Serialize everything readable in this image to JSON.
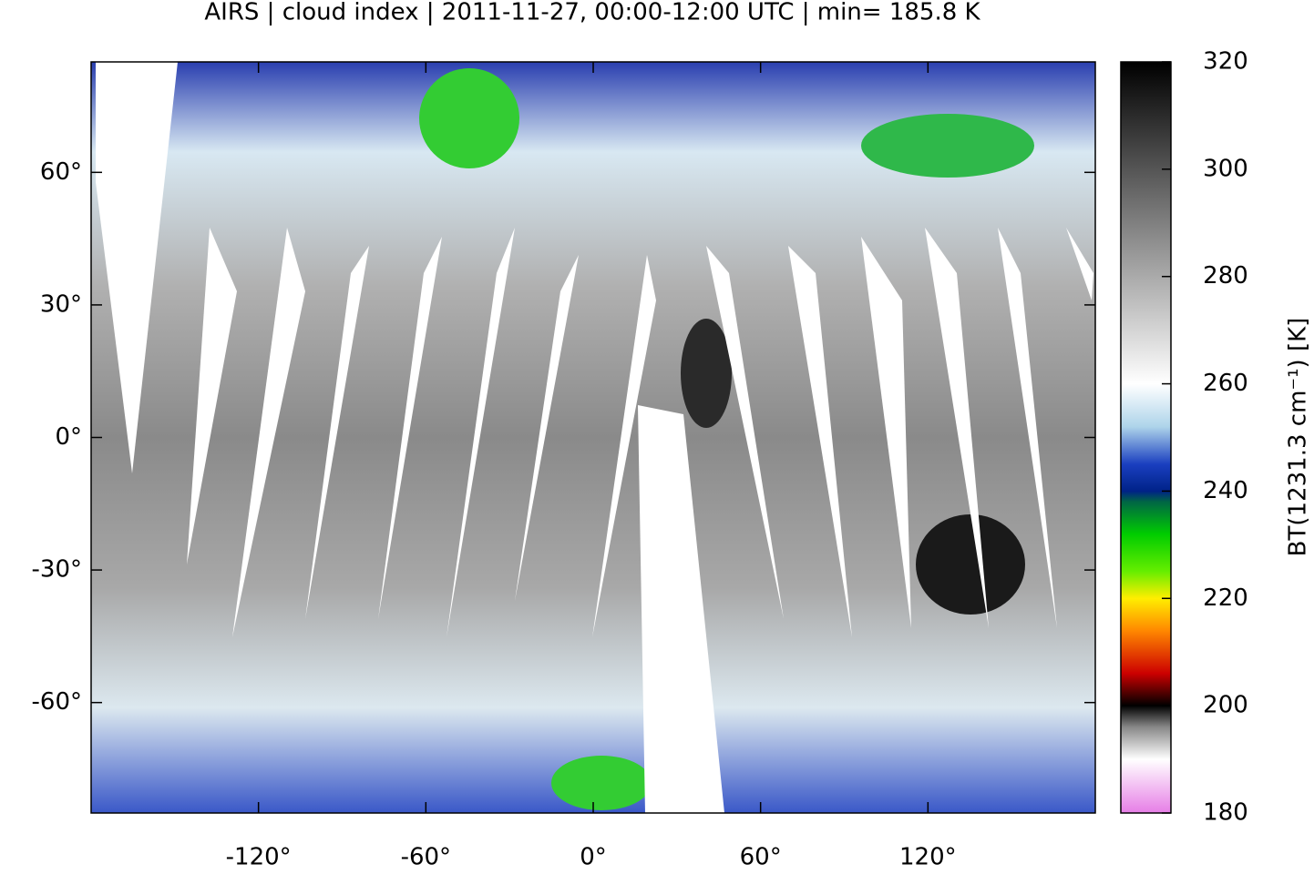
{
  "map": {
    "title": "AIRS | cloud index | 2011-11-27, 00:00-12:00 UTC | min= 185.8 K",
    "xlim": [
      -180,
      180
    ],
    "ylim": [
      -85,
      85
    ],
    "xticks": [
      {
        "value": -120,
        "label": "-120°"
      },
      {
        "value": -60,
        "label": "-60°"
      },
      {
        "value": 0,
        "label": "0°"
      },
      {
        "value": 60,
        "label": "60°"
      },
      {
        "value": 120,
        "label": "120°"
      }
    ],
    "yticks": [
      {
        "value": 60,
        "label": "60°"
      },
      {
        "value": 30,
        "label": "30°"
      },
      {
        "value": 0,
        "label": "0°"
      },
      {
        "value": -30,
        "label": "-30°"
      },
      {
        "value": -60,
        "label": "-60°"
      }
    ],
    "colorbar": {
      "label": "BT(1231.3 cm⁻¹) [K]",
      "lim": [
        180,
        320
      ],
      "ticks": [
        180,
        200,
        220,
        240,
        260,
        280,
        300,
        320
      ],
      "colormap": [
        [
          180,
          "#e67ee6"
        ],
        [
          190,
          "#ffffff"
        ],
        [
          196,
          "#888888"
        ],
        [
          200,
          "#000000"
        ],
        [
          206,
          "#cc0000"
        ],
        [
          214,
          "#ff8800"
        ],
        [
          220,
          "#ffee00"
        ],
        [
          225,
          "#66ee00"
        ],
        [
          232,
          "#00cc00"
        ],
        [
          238,
          "#006644"
        ],
        [
          240,
          "#002288"
        ],
        [
          245,
          "#1a3fc0"
        ],
        [
          252,
          "#aed4ea"
        ],
        [
          260,
          "#ffffff"
        ],
        [
          320,
          "#000000"
        ]
      ]
    }
  }
}
